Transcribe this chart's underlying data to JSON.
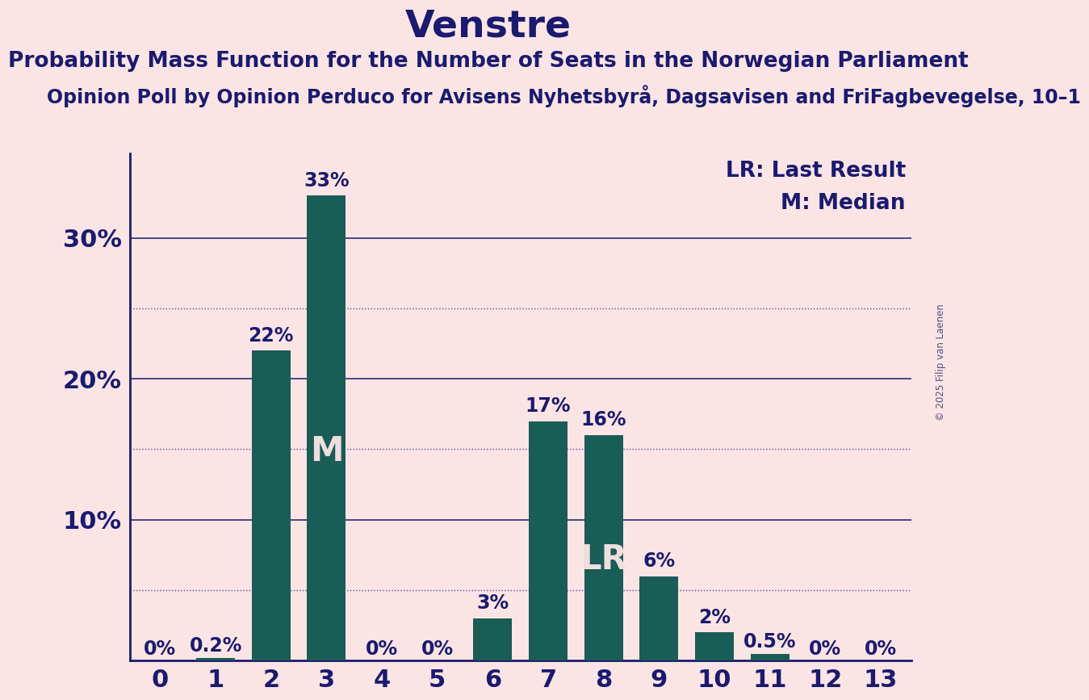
{
  "title": "Venstre",
  "subtitle": "Probability Mass Function for the Number of Seats in the Norwegian Parliament",
  "subtitle2": "Opinion Poll by Opinion Perduco for Avisens Nyhetsbyrå, Dagsavisen and FriFagbevegelse, 10–1",
  "copyright": "© 2025 Filip van Laenen",
  "categories": [
    0,
    1,
    2,
    3,
    4,
    5,
    6,
    7,
    8,
    9,
    10,
    11,
    12,
    13
  ],
  "values": [
    0.0,
    0.2,
    22.0,
    33.0,
    0.0,
    0.0,
    3.0,
    17.0,
    16.0,
    6.0,
    2.0,
    0.5,
    0.0,
    0.0
  ],
  "labels": [
    "0%",
    "0.2%",
    "22%",
    "33%",
    "0%",
    "0%",
    "3%",
    "17%",
    "16%",
    "6%",
    "2%",
    "0.5%",
    "0%",
    "0%"
  ],
  "bar_color": "#1a5c56",
  "background_color": "#fce4e4",
  "text_color": "#1a1a6e",
  "median_bar": 3,
  "lr_bar": 8,
  "median_label": "M",
  "lr_label": "LR",
  "inside_label_color": "#f0dede",
  "legend_lr": "LR: Last Result",
  "legend_m": "M: Median",
  "ylim": [
    0,
    36
  ],
  "solid_grid": [
    10,
    20,
    30
  ],
  "dotted_grid": [
    5,
    15,
    25
  ],
  "title_fontsize": 34,
  "subtitle_fontsize": 19,
  "subtitle2_fontsize": 17,
  "label_fontsize": 17,
  "tick_fontsize": 22,
  "legend_fontsize": 19,
  "inside_label_fontsize": 30,
  "bar_width": 0.7
}
